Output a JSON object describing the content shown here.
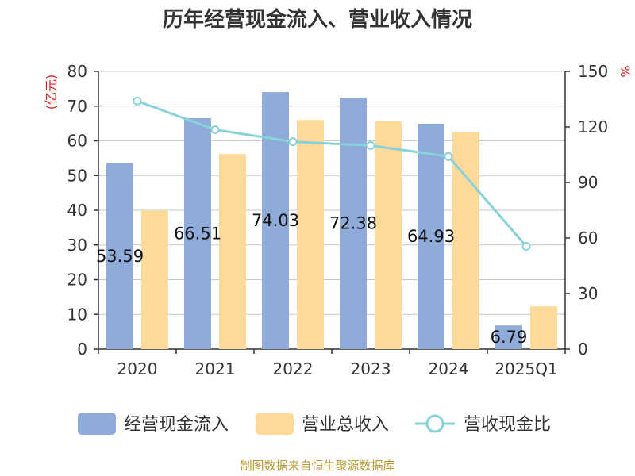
{
  "chart_data": {
    "type": "bar+line",
    "title": "历年经营现金流入、营业收入情况",
    "categories": [
      "2020",
      "2021",
      "2022",
      "2023",
      "2024",
      "2025Q1"
    ],
    "y_left_unit": "(亿元)",
    "y_right_unit": "%",
    "y_left_ticks": [
      "0",
      "10",
      "20",
      "30",
      "40",
      "50",
      "60",
      "70",
      "80"
    ],
    "y_right_ticks": [
      "0",
      "30",
      "60",
      "90",
      "120",
      "150"
    ],
    "ylim_left": [
      0,
      80
    ],
    "ylim_right": [
      0,
      150
    ],
    "series": [
      {
        "name": "经营现金流入",
        "type": "bar",
        "axis": "left",
        "color": "#8eabd9",
        "values": [
          53.59,
          66.51,
          74.03,
          72.38,
          64.93,
          6.79
        ],
        "labels": [
          "53.59",
          "66.51",
          "74.03",
          "72.38",
          "64.93",
          "6.79"
        ]
      },
      {
        "name": "营业总收入",
        "type": "bar",
        "axis": "left",
        "color": "#fdd99a",
        "values": [
          40.0,
          56.2,
          66.0,
          65.7,
          62.5,
          12.3
        ]
      },
      {
        "name": "营收现金比",
        "type": "line",
        "axis": "right",
        "color": "#88d2d9",
        "values": [
          134,
          118.5,
          112,
          110,
          104,
          55.5
        ]
      }
    ],
    "legend_position": "bottom"
  },
  "footer": {
    "source": "制图数据来自恒生聚源数据库"
  }
}
